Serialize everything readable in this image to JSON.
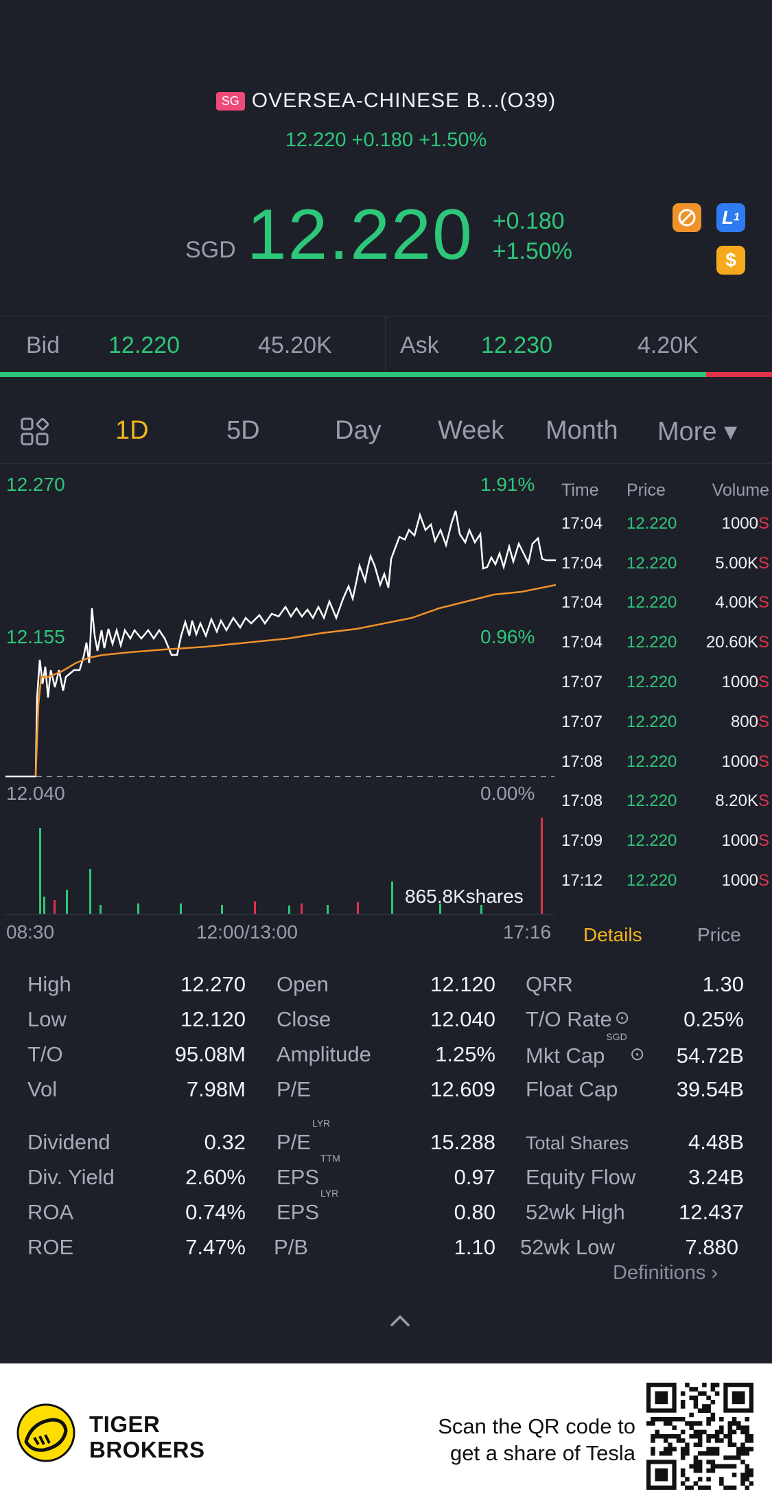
{
  "header": {
    "market_badge": "SG",
    "stock_name": "OVERSEA-CHINESE B...(O39)",
    "sub_quote": "12.220 +0.180 +1.50%",
    "currency": "SGD",
    "price": "12.220",
    "change": "+0.180",
    "change_pct": "+1.50%",
    "icons": [
      "no-short-sell-icon",
      "level1-icon",
      "dollar-icon"
    ]
  },
  "bidask": {
    "bid_label": "Bid",
    "bid_price": "12.220",
    "bid_size": "45.20K",
    "ask_label": "Ask",
    "ask_price": "12.230",
    "ask_size": "4.20K",
    "bid_ratio": 0.915
  },
  "tabs": {
    "items": [
      "1D",
      "5D",
      "Day",
      "Week",
      "Month",
      "More ▾"
    ],
    "active": "1D"
  },
  "chart": {
    "y_top_left": "12.270",
    "y_mid_left": "12.155",
    "y_bottom_left": "12.040",
    "y_top_right": "1.91%",
    "y_mid_right": "0.96%",
    "y_bottom_right": "0.00%",
    "volume_label": "865.8Kshares",
    "time_start": "08:30",
    "time_mid": "12:00/13:00",
    "time_end": "17:16"
  },
  "chart_data": {
    "type": "line",
    "x_range": [
      "08:30",
      "17:16"
    ],
    "ylim": [
      12.04,
      12.27
    ],
    "series": [],
    "volume_max_label": "865.8Kshares"
  },
  "trades": {
    "headers": [
      "Time",
      "Price",
      "Volume"
    ],
    "rows": [
      {
        "time": "17:04",
        "price": "12.220",
        "vol": "1000",
        "side": "S"
      },
      {
        "time": "17:04",
        "price": "12.220",
        "vol": "5.00K",
        "side": "S"
      },
      {
        "time": "17:04",
        "price": "12.220",
        "vol": "4.00K",
        "side": "S"
      },
      {
        "time": "17:04",
        "price": "12.220",
        "vol": "20.60K",
        "side": "S"
      },
      {
        "time": "17:07",
        "price": "12.220",
        "vol": "1000",
        "side": "S"
      },
      {
        "time": "17:07",
        "price": "12.220",
        "vol": "800",
        "side": "S"
      },
      {
        "time": "17:08",
        "price": "12.220",
        "vol": "1000",
        "side": "S"
      },
      {
        "time": "17:08",
        "price": "12.220",
        "vol": "8.20K",
        "side": "S"
      },
      {
        "time": "17:09",
        "price": "12.220",
        "vol": "1000",
        "side": "S"
      },
      {
        "time": "17:12",
        "price": "12.220",
        "vol": "1000",
        "side": "S"
      }
    ]
  },
  "detail_tabs": {
    "details": "Details",
    "price": "Price"
  },
  "stats": {
    "high": {
      "label": "High",
      "value": "12.270"
    },
    "low": {
      "label": "Low",
      "value": "12.120"
    },
    "to": {
      "label": "T/O",
      "value": "95.08M"
    },
    "vol": {
      "label": "Vol",
      "value": "7.98M"
    },
    "open": {
      "label": "Open",
      "value": "12.120"
    },
    "close": {
      "label": "Close",
      "value": "12.040"
    },
    "amplitude": {
      "label": "Amplitude",
      "value": "1.25%"
    },
    "pe": {
      "label": "P/E",
      "value": "12.609"
    },
    "qrr": {
      "label": "QRR",
      "value": "1.30"
    },
    "to_rate": {
      "label": "T/O Rate",
      "value": "0.25%"
    },
    "mkt_cap": {
      "label": "Mkt Cap",
      "tag": "SGD",
      "value": "54.72B"
    },
    "float_cap": {
      "label": "Float Cap",
      "value": "39.54B"
    },
    "dividend": {
      "label": "Dividend",
      "value": "0.32"
    },
    "div_yield": {
      "label": "Div. Yield",
      "value": "2.60%"
    },
    "roa": {
      "label": "ROA",
      "value": "0.74%"
    },
    "roe": {
      "label": "ROE",
      "value": "7.47%"
    },
    "pe_lyr": {
      "label": "P/E",
      "tag": "LYR",
      "value": "15.288"
    },
    "eps_ttm": {
      "label": "EPS",
      "tag": "TTM",
      "value": "0.97"
    },
    "eps_lyr": {
      "label": "EPS",
      "tag": "LYR",
      "value": "0.80"
    },
    "pb": {
      "label": "P/B",
      "value": "1.10"
    },
    "total_shares": {
      "label": "Total Shares",
      "value": "4.48B"
    },
    "equity_flow": {
      "label": "Equity Flow",
      "value": "3.24B"
    },
    "wk52_high": {
      "label": "52wk High",
      "value": "12.437"
    },
    "wk52_low": {
      "label": "52wk Low",
      "value": "7.880"
    }
  },
  "definitions_link": "Definitions",
  "footer": {
    "brand_line1": "TIGER",
    "brand_line2": "BROKERS",
    "qr_line1": "Scan the QR code to",
    "qr_line2": "get a share of Tesla"
  },
  "colors": {
    "up": "#2dc77a",
    "down": "#e0324a",
    "accent": "#f3b51c",
    "avg_line": "#f0922a",
    "background": "#1e2029"
  }
}
